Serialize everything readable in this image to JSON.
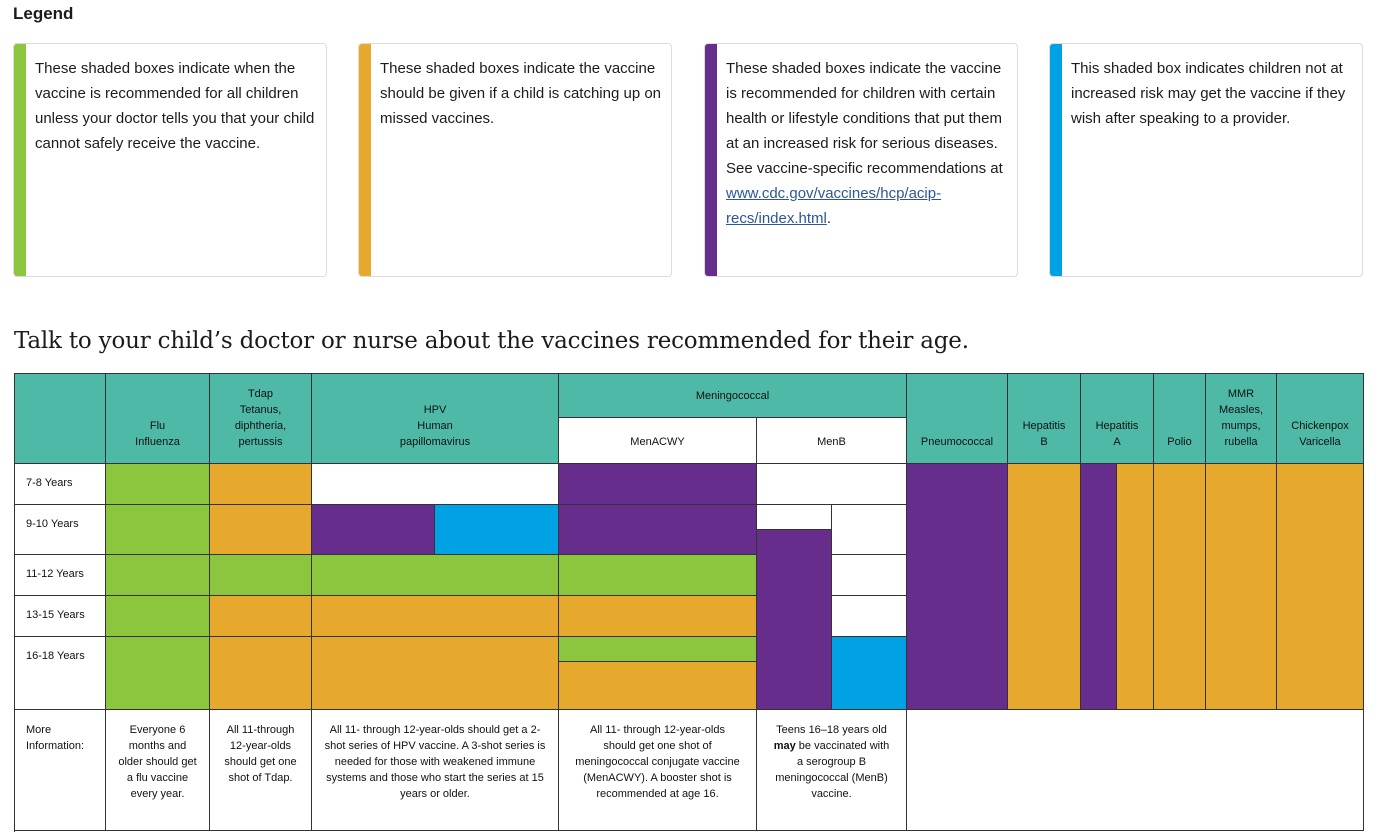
{
  "legend": {
    "title": "Legend",
    "items": [
      {
        "color": "#8cc63f",
        "text": "These shaded boxes indicate when the vaccine is recommended for all children unless your doctor tells you that your child cannot safely receive the vaccine."
      },
      {
        "color": "#e6a92e",
        "text": "These shaded boxes indicate the vaccine should be given if a child is catching up on missed vaccines."
      },
      {
        "color": "#662d8c",
        "text": "These shaded boxes indicate the vaccine is recommended for children with certain health or lifestyle conditions that put them at an increased risk for serious diseases. See vaccine-specific recommendations at",
        "link": "www.cdc.gov/vaccines/hcp/acip-recs/index.html",
        "after": "."
      },
      {
        "color": "#00a2e3",
        "text": "This shaded box indicates children not at increased risk may get the vaccine if they wish after speaking to a provider."
      }
    ]
  },
  "heading": "Talk to your child’s doctor or nurse about the vaccines recommended for their age.",
  "table": {
    "headers": {
      "flu": "Flu\nInfluenza",
      "tdap": "Tdap\nTetanus,\ndiphtheria,\npertussis",
      "hpv": "HPV\nHuman\npapillomavirus",
      "meningococcal": "Meningococcal",
      "menacwy": "MenACWY",
      "menb": "MenB",
      "pneumococcal": "Pneumococcal",
      "hepb": "Hepatitis\nB",
      "hepa": "Hepatitis\nA",
      "polio": "Polio",
      "mmr": "MMR\nMeasles,\nmumps,\nrubella",
      "varicella": "Chickenpox\nVaricella"
    },
    "rows": [
      "7-8 Years",
      "9-10 Years",
      "11-12 Years",
      "13-15 Years",
      "16-18 Years"
    ],
    "more_info_label": "More\nInformation:",
    "more_info": {
      "flu": "Everyone 6 months and older should get a flu vaccine every year.",
      "tdap": "All 11-through 12-year-olds should get one shot of Tdap.",
      "hpv": "All 11- through 12-year-olds should get a 2-shot series of HPV vaccine. A 3-shot series is needed for those with weakened immune systems and those who start the series at 15 years or older.",
      "menacwy": "All 11- through 12-year-olds should get one shot of meningococcal conjugate vaccine (MenACWY). A booster shot is recommended at age 16.",
      "menb_pre": "Teens 16–18 years old",
      "menb_bold": "may",
      "menb_post": "be vaccinated with a serogroup B meningococcal (MenB) vaccine."
    }
  }
}
